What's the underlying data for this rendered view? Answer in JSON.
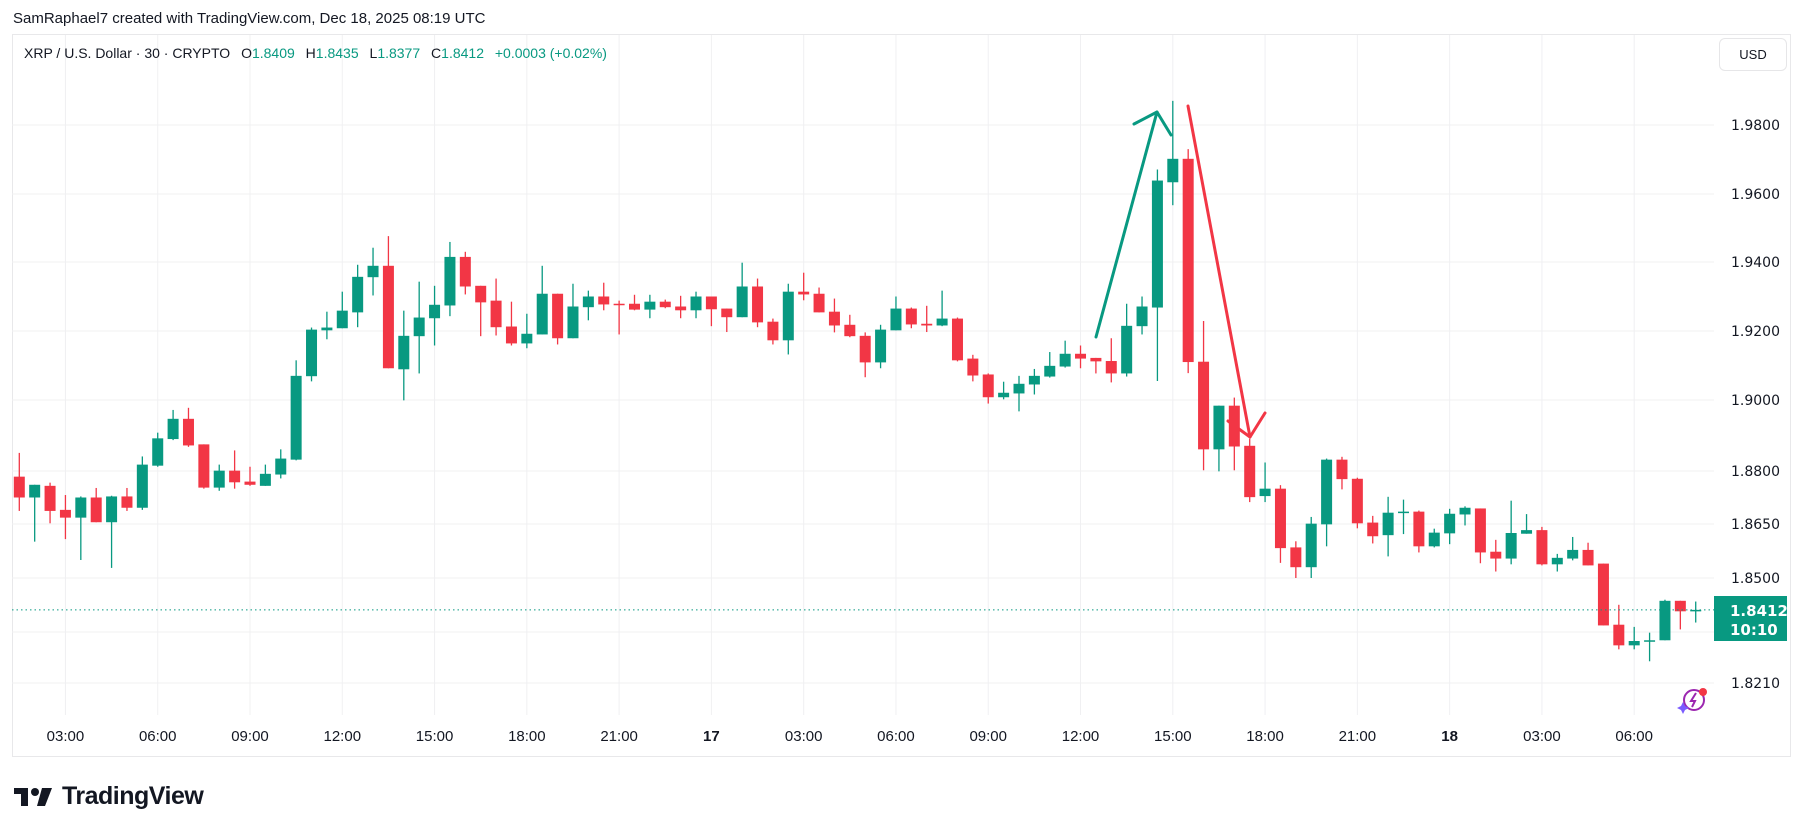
{
  "caption": "SamRaphael7 created with TradingView.com, Dec 18, 2025 08:19 UTC",
  "legend": {
    "symbol": "XRP / U.S. Dollar · 30 · CRYPTO",
    "o_label": "O",
    "o_value": "1.8409",
    "h_label": "H",
    "h_value": "1.8435",
    "l_label": "L",
    "l_value": "1.8377",
    "c_label": "C",
    "c_value": "1.8412",
    "change": "+0.0003 (+0.02%)"
  },
  "currency_button": "USD",
  "current_price": {
    "value": "1.8412",
    "countdown": "10:10"
  },
  "brand": "TradingView",
  "colors": {
    "up": "#089981",
    "down": "#F23645",
    "grid": "#f0f0f2",
    "text": "#131722"
  },
  "chart_data": {
    "type": "candlestick",
    "symbol": "XRP/USD",
    "interval_minutes": 30,
    "price_ticks": [
      "1.9800",
      "1.9600",
      "1.9400",
      "1.9200",
      "1.9000",
      "1.8800",
      "1.8650",
      "1.8500",
      "1.8210"
    ],
    "time_labels": [
      {
        "text": "03:00",
        "bold": false
      },
      {
        "text": "06:00",
        "bold": false
      },
      {
        "text": "09:00",
        "bold": false
      },
      {
        "text": "12:00",
        "bold": false
      },
      {
        "text": "15:00",
        "bold": false
      },
      {
        "text": "18:00",
        "bold": false
      },
      {
        "text": "21:00",
        "bold": false
      },
      {
        "text": "17",
        "bold": true
      },
      {
        "text": "03:00",
        "bold": false
      },
      {
        "text": "06:00",
        "bold": false
      },
      {
        "text": "09:00",
        "bold": false
      },
      {
        "text": "12:00",
        "bold": false
      },
      {
        "text": "15:00",
        "bold": false
      },
      {
        "text": "18:00",
        "bold": false
      },
      {
        "text": "21:00",
        "bold": false
      },
      {
        "text": "18",
        "bold": true
      },
      {
        "text": "03:00",
        "bold": false
      },
      {
        "text": "06:00",
        "bold": false
      }
    ],
    "ohlc": [
      [
        1.8784,
        1.8851,
        1.8687,
        1.8725
      ],
      [
        1.8725,
        1.8761,
        1.8601,
        1.8761
      ],
      [
        1.8758,
        1.8767,
        1.8652,
        1.8687
      ],
      [
        1.869,
        1.8732,
        1.8608,
        1.8668
      ],
      [
        1.8668,
        1.8728,
        1.855,
        1.8725
      ],
      [
        1.8725,
        1.8752,
        1.8655,
        1.8655
      ],
      [
        1.8655,
        1.873,
        1.8528,
        1.8728
      ],
      [
        1.8728,
        1.8752,
        1.8687,
        1.8696
      ],
      [
        1.8696,
        1.8841,
        1.869,
        1.8818
      ],
      [
        1.8815,
        1.8908,
        1.8812,
        1.8892
      ],
      [
        1.889,
        1.8972,
        1.8887,
        1.8947
      ],
      [
        1.8947,
        1.8978,
        1.8868,
        1.8872
      ],
      [
        1.8875,
        1.8875,
        1.875,
        1.8753
      ],
      [
        1.8753,
        1.8818,
        1.8744,
        1.8801
      ],
      [
        1.8801,
        1.8858,
        1.875,
        1.8768
      ],
      [
        1.877,
        1.8812,
        1.8758,
        1.8761
      ],
      [
        1.8758,
        1.8818,
        1.8758,
        1.8792
      ],
      [
        1.879,
        1.8861,
        1.8779,
        1.8835
      ],
      [
        1.8832,
        1.9115,
        1.883,
        1.907
      ],
      [
        1.9069,
        1.921,
        1.9054,
        1.9204
      ],
      [
        1.9202,
        1.9256,
        1.9176,
        1.921
      ],
      [
        1.9208,
        1.9314,
        1.9208,
        1.9259
      ],
      [
        1.9254,
        1.9392,
        1.9211,
        1.9357
      ],
      [
        1.9356,
        1.9442,
        1.9303,
        1.9389
      ],
      [
        1.9389,
        1.9476,
        1.9092,
        1.9092
      ],
      [
        1.9089,
        1.9259,
        1.8999,
        1.9186
      ],
      [
        1.9185,
        1.9343,
        1.9077,
        1.9239
      ],
      [
        1.9237,
        1.9331,
        1.9158,
        1.9276
      ],
      [
        1.9274,
        1.9459,
        1.9243,
        1.9415
      ],
      [
        1.9415,
        1.943,
        1.9306,
        1.9329
      ],
      [
        1.9331,
        1.9331,
        1.9185,
        1.9283
      ],
      [
        1.9288,
        1.9352,
        1.9187,
        1.9211
      ],
      [
        1.9213,
        1.9285,
        1.9158,
        1.9164
      ],
      [
        1.9164,
        1.925,
        1.915,
        1.9192
      ],
      [
        1.919,
        1.9389,
        1.919,
        1.9308
      ],
      [
        1.9308,
        1.9308,
        1.9161,
        1.9179
      ],
      [
        1.9179,
        1.9337,
        1.9179,
        1.9271
      ],
      [
        1.9269,
        1.9317,
        1.9231,
        1.93
      ],
      [
        1.93,
        1.934,
        1.926,
        1.9277
      ],
      [
        1.9279,
        1.9288,
        1.919,
        1.9277
      ],
      [
        1.9279,
        1.9305,
        1.926,
        1.9262
      ],
      [
        1.9262,
        1.9305,
        1.9237,
        1.9285
      ],
      [
        1.9285,
        1.9291,
        1.9266,
        1.9269
      ],
      [
        1.9271,
        1.9302,
        1.9237,
        1.926
      ],
      [
        1.926,
        1.9314,
        1.9237,
        1.93
      ],
      [
        1.93,
        1.93,
        1.9214,
        1.9263
      ],
      [
        1.9265,
        1.9265,
        1.9197,
        1.924
      ],
      [
        1.924,
        1.9398,
        1.924,
        1.9329
      ],
      [
        1.9329,
        1.9352,
        1.9211,
        1.9225
      ],
      [
        1.9227,
        1.9236,
        1.9161,
        1.9173
      ],
      [
        1.9173,
        1.9337,
        1.9132,
        1.9314
      ],
      [
        1.9314,
        1.9369,
        1.9289,
        1.9306
      ],
      [
        1.9308,
        1.9326,
        1.9254,
        1.9254
      ],
      [
        1.9256,
        1.9294,
        1.9196,
        1.9216
      ],
      [
        1.9218,
        1.9247,
        1.9182,
        1.9185
      ],
      [
        1.9186,
        1.9196,
        1.9066,
        1.9109
      ],
      [
        1.9109,
        1.9218,
        1.9092,
        1.9204
      ],
      [
        1.9202,
        1.93,
        1.9202,
        1.9265
      ],
      [
        1.9265,
        1.9268,
        1.9208,
        1.9219
      ],
      [
        1.9221,
        1.9273,
        1.9197,
        1.9216
      ],
      [
        1.9216,
        1.9317,
        1.9214,
        1.9236
      ],
      [
        1.9236,
        1.9239,
        1.9112,
        1.9115
      ],
      [
        1.912,
        1.9131,
        1.9054,
        1.9071
      ],
      [
        1.9074,
        1.9077,
        1.899,
        1.9008
      ],
      [
        1.9008,
        1.9053,
        1.9002,
        1.9021
      ],
      [
        1.9019,
        1.907,
        1.8968,
        1.9047
      ],
      [
        1.9045,
        1.909,
        1.9016,
        1.907
      ],
      [
        1.9068,
        1.9139,
        1.9065,
        1.9099
      ],
      [
        1.9097,
        1.9172,
        1.9094,
        1.9134
      ],
      [
        1.9134,
        1.9158,
        1.9092,
        1.912
      ],
      [
        1.9122,
        1.9122,
        1.9077,
        1.9112
      ],
      [
        1.9113,
        1.9179,
        1.9051,
        1.9077
      ],
      [
        1.9077,
        1.9279,
        1.9068,
        1.9215
      ],
      [
        1.9214,
        1.93,
        1.919,
        1.9271
      ],
      [
        1.9268,
        1.9671,
        1.9055,
        1.9639
      ],
      [
        1.9634,
        1.987,
        1.9567,
        1.9702
      ],
      [
        1.9702,
        1.973,
        1.9078,
        1.911
      ],
      [
        1.9111,
        1.9229,
        1.8802,
        1.8861
      ],
      [
        1.8861,
        1.8984,
        1.8799,
        1.8984
      ],
      [
        1.8984,
        1.9007,
        1.8802,
        1.8869
      ],
      [
        1.8871,
        1.8891,
        1.8712,
        1.8726
      ],
      [
        1.8729,
        1.8824,
        1.8712,
        1.875
      ],
      [
        1.875,
        1.876,
        1.8542,
        1.8583
      ],
      [
        1.8585,
        1.8602,
        1.85,
        1.853
      ],
      [
        1.853,
        1.867,
        1.85,
        1.8651
      ],
      [
        1.8649,
        1.8835,
        1.8588,
        1.8832
      ],
      [
        1.8832,
        1.884,
        1.8748,
        1.8777
      ],
      [
        1.8778,
        1.8781,
        1.8638,
        1.8652
      ],
      [
        1.8654,
        1.8673,
        1.8596,
        1.8616
      ],
      [
        1.8619,
        1.8727,
        1.856,
        1.8682
      ],
      [
        1.8682,
        1.8719,
        1.8622,
        1.8685
      ],
      [
        1.8685,
        1.8688,
        1.8571,
        1.8588
      ],
      [
        1.8588,
        1.8637,
        1.8585,
        1.8626
      ],
      [
        1.8624,
        1.8693,
        1.8594,
        1.8679
      ],
      [
        1.8677,
        1.87,
        1.8646,
        1.8696
      ],
      [
        1.8694,
        1.8694,
        1.8541,
        1.8571
      ],
      [
        1.8573,
        1.8606,
        1.8518,
        1.8554
      ],
      [
        1.8554,
        1.8716,
        1.8538,
        1.8625
      ],
      [
        1.8623,
        1.8678,
        1.8623,
        1.8633
      ],
      [
        1.8633,
        1.8642,
        1.8535,
        1.8538
      ],
      [
        1.8538,
        1.8567,
        1.8518,
        1.8556
      ],
      [
        1.8554,
        1.8614,
        1.8549,
        1.8578
      ],
      [
        1.8578,
        1.8598,
        1.8535,
        1.8535
      ],
      [
        1.854,
        1.854,
        1.8369,
        1.8369
      ],
      [
        1.8371,
        1.8426,
        1.8303,
        1.8314
      ],
      [
        1.8314,
        1.8365,
        1.8303,
        1.8326
      ],
      [
        1.8326,
        1.8349,
        1.827,
        1.8328
      ],
      [
        1.8328,
        1.844,
        1.8328,
        1.8437
      ],
      [
        1.8437,
        1.8437,
        1.8358,
        1.8408
      ],
      [
        1.8409,
        1.8435,
        1.8377,
        1.8412
      ]
    ],
    "annotations": [
      {
        "type": "arrow",
        "color": "#089981",
        "direction": "up"
      },
      {
        "type": "arrow",
        "color": "#F23645",
        "direction": "down"
      }
    ]
  }
}
